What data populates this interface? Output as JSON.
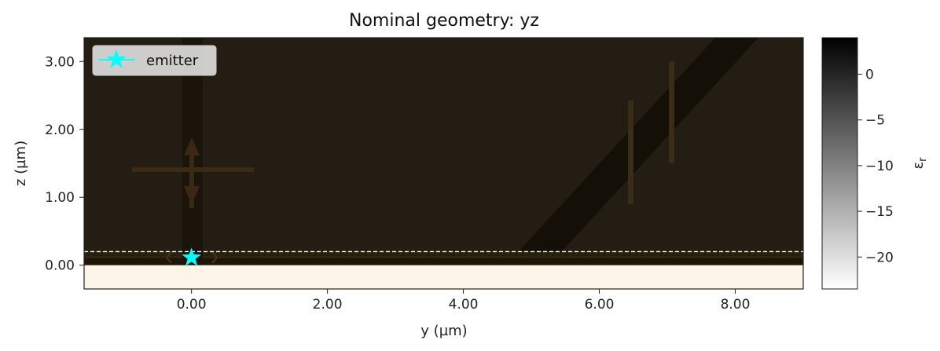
{
  "chart_data": {
    "type": "heatmap",
    "title": "Nominal geometry: yz",
    "xlabel": "y (µm)",
    "ylabel": "z (µm)",
    "xlim": [
      -1.58,
      9.0
    ],
    "ylim": [
      -0.35,
      3.35
    ],
    "x_ticks": [
      "0.00",
      "2.00",
      "4.00",
      "6.00",
      "8.00"
    ],
    "x_tick_values": [
      0,
      2,
      4,
      6,
      8
    ],
    "y_ticks": [
      "0.00",
      "1.00",
      "2.00",
      "3.00"
    ],
    "y_tick_values": [
      0,
      1,
      2,
      3
    ],
    "grid": false,
    "legend": {
      "position": "top-left",
      "entries": [
        {
          "label": "emitter",
          "marker": "star",
          "color": "#00ffff"
        }
      ]
    },
    "colorbar": {
      "label": "ε_r",
      "label_main": "ε",
      "label_sub": "r",
      "range": [
        -23.5,
        4.0
      ],
      "ticks": [
        "0",
        "−5",
        "−10",
        "−15",
        "−20"
      ],
      "tick_values": [
        0,
        -5,
        -10,
        -15,
        -20
      ],
      "colormap": "gray_r"
    },
    "regions": [
      {
        "name": "substrate",
        "y": [
          -1.58,
          9.0
        ],
        "z": [
          -0.35,
          0.0
        ],
        "color": "#fdf6e8"
      },
      {
        "name": "interface-layer",
        "y": [
          -1.58,
          9.0
        ],
        "z": [
          0.0,
          0.12
        ],
        "color": "#1e1606"
      },
      {
        "name": "thin-film",
        "y": [
          -1.58,
          9.0
        ],
        "z": [
          0.12,
          0.2
        ],
        "color": "#2a200c"
      },
      {
        "name": "background",
        "y": [
          -1.58,
          9.0
        ],
        "z": [
          0.2,
          3.35
        ],
        "color": "#231d14"
      }
    ],
    "reference_line": {
      "z": 0.2,
      "style": "dashed",
      "color": "#ffffff"
    },
    "emitter": {
      "y": 0.0,
      "z": 0.11
    },
    "color_hints": {
      "accent": "#00ffff",
      "background": "#231d14",
      "substrate": "#fdf6e8"
    }
  }
}
